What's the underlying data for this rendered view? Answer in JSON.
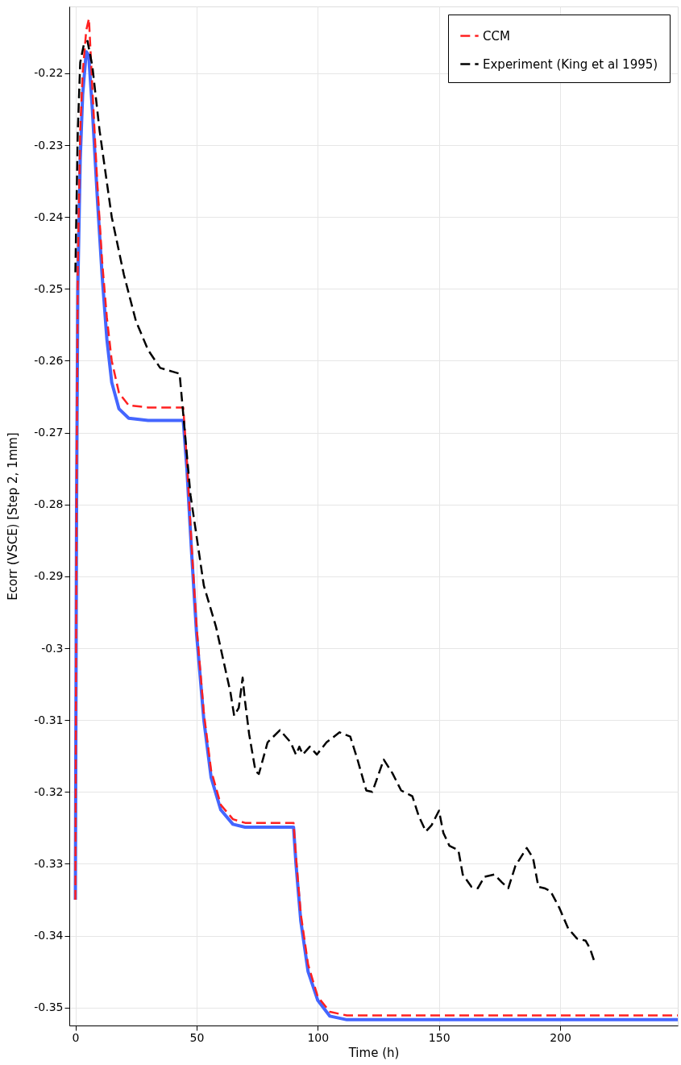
{
  "chart_data": {
    "type": "line",
    "xlabel": "Time (h)",
    "ylabel": "Ecorr (VSCE)  [Step 2, 1mm]",
    "xlim": [
      -2.5,
      248.5
    ],
    "ylim": [
      -0.3525,
      -0.2107
    ],
    "xticks": [
      0,
      50,
      100,
      150,
      200
    ],
    "yticks": [
      -0.35,
      -0.34,
      -0.33,
      -0.32,
      -0.31,
      -0.3,
      -0.29,
      -0.28,
      -0.27,
      -0.26,
      -0.25,
      -0.24,
      -0.23,
      -0.22
    ],
    "grid": true,
    "legend": "top right",
    "series": [
      {
        "color": "#4466ff",
        "line_style": "solid",
        "x": [
          0,
          0.5,
          1,
          2,
          3,
          4.5,
          5.5,
          7,
          9,
          11,
          13,
          15,
          18,
          22,
          30,
          44.5,
          46,
          48,
          50,
          53,
          56,
          60,
          65,
          70,
          90,
          91,
          93,
          96,
          100,
          105,
          112,
          248.5
        ],
        "values": [
          -0.335,
          -0.28,
          -0.25,
          -0.232,
          -0.223,
          -0.217,
          -0.2175,
          -0.225,
          -0.237,
          -0.248,
          -0.257,
          -0.263,
          -0.2667,
          -0.268,
          -0.2683,
          -0.2683,
          -0.275,
          -0.287,
          -0.298,
          -0.31,
          -0.318,
          -0.3225,
          -0.3245,
          -0.3249,
          -0.3249,
          -0.33,
          -0.338,
          -0.345,
          -0.349,
          -0.3512,
          -0.3517,
          -0.3517
        ]
      },
      {
        "name": "CCM",
        "color": "#ff2020",
        "line_style": "dashed",
        "x": [
          0,
          0.5,
          1,
          2,
          3,
          4.5,
          5.6,
          7,
          9,
          11,
          13,
          15,
          18,
          22,
          30,
          44.5,
          46,
          48,
          50,
          53,
          56,
          60,
          65,
          70,
          90,
          91,
          93,
          96,
          100,
          105,
          112,
          248.5
        ],
        "values": [
          -0.335,
          -0.278,
          -0.247,
          -0.228,
          -0.22,
          -0.214,
          -0.2124,
          -0.222,
          -0.235,
          -0.246,
          -0.254,
          -0.26,
          -0.2645,
          -0.2662,
          -0.2665,
          -0.2665,
          -0.274,
          -0.286,
          -0.297,
          -0.309,
          -0.317,
          -0.3218,
          -0.3238,
          -0.3243,
          -0.3243,
          -0.329,
          -0.337,
          -0.344,
          -0.3485,
          -0.3506,
          -0.3511,
          -0.3511
        ]
      },
      {
        "name": "Experiment (King et al 1995)",
        "color": "#000000",
        "line_style": "dashed",
        "x": [
          0,
          1,
          2,
          3.5,
          5,
          7,
          10,
          15,
          20,
          25,
          30,
          35,
          40,
          43,
          47.5,
          53,
          58,
          64,
          65.5,
          67.4,
          69,
          70,
          71.7,
          74.3,
          75.7,
          79.3,
          84.4,
          88.8,
          91,
          92.4,
          93.8,
          96.7,
          99.6,
          103.6,
          109,
          113.4,
          116.3,
          120,
          122.5,
          127.2,
          130.8,
          134.4,
          139,
          141.7,
          144.6,
          147,
          150,
          151.8,
          154.3,
          158,
          159.8,
          163.4,
          166,
          168.8,
          172.8,
          176,
          178.6,
          181.5,
          186.2,
          188.8,
          191,
          193.5,
          196,
          199.6,
          203.3,
          206.9,
          210.5,
          212.3,
          214
        ],
        "values": [
          -0.2477,
          -0.228,
          -0.2185,
          -0.216,
          -0.2155,
          -0.219,
          -0.228,
          -0.24,
          -0.248,
          -0.2545,
          -0.2585,
          -0.261,
          -0.2615,
          -0.2618,
          -0.2787,
          -0.2913,
          -0.297,
          -0.3062,
          -0.3094,
          -0.3083,
          -0.3041,
          -0.3074,
          -0.312,
          -0.3171,
          -0.3175,
          -0.3131,
          -0.3114,
          -0.3131,
          -0.3148,
          -0.3137,
          -0.3148,
          -0.3137,
          -0.3148,
          -0.3131,
          -0.3117,
          -0.3123,
          -0.3154,
          -0.3198,
          -0.32,
          -0.3155,
          -0.3174,
          -0.3198,
          -0.3206,
          -0.3234,
          -0.3255,
          -0.3246,
          -0.3226,
          -0.3257,
          -0.3275,
          -0.3281,
          -0.3315,
          -0.3332,
          -0.3334,
          -0.3318,
          -0.3315,
          -0.3326,
          -0.3334,
          -0.3303,
          -0.3278,
          -0.3292,
          -0.3332,
          -0.3334,
          -0.3338,
          -0.3361,
          -0.339,
          -0.3404,
          -0.3407,
          -0.3418,
          -0.3435
        ]
      }
    ]
  }
}
